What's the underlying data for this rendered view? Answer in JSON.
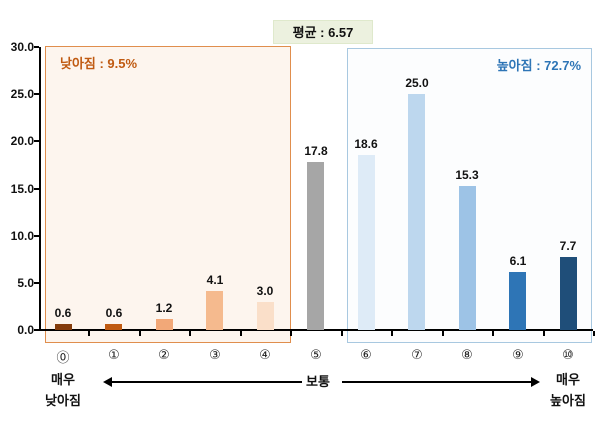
{
  "title": {
    "text": "평균 : 6.57"
  },
  "regions": {
    "low": {
      "label": "낮아짐 : 9.5%",
      "border": "#E08E4D",
      "fill": "#FDF5EE",
      "text_color": "#C05A11"
    },
    "high": {
      "label": "높아짐 : 72.7%",
      "border": "#A8C8E0",
      "fill": "#FCFDFE",
      "text_color": "#2E75B6"
    }
  },
  "chart_data": {
    "type": "bar",
    "title": "평균 : 6.57",
    "categories": [
      "⓪",
      "①",
      "②",
      "③",
      "④",
      "⑤",
      "⑥",
      "⑦",
      "⑧",
      "⑨",
      "⑩"
    ],
    "values": [
      0.6,
      0.6,
      1.2,
      4.1,
      3.0,
      17.8,
      18.6,
      25.0,
      15.3,
      6.1,
      7.7
    ],
    "value_labels": [
      "0.6",
      "0.6",
      "1.2",
      "4.1",
      "3.0",
      "17.8",
      "18.6",
      "25.0",
      "15.3",
      "6.1",
      "7.7"
    ],
    "bar_colors": [
      "#843C0C",
      "#C05A11",
      "#F2A878",
      "#F5BA8E",
      "#FADFC9",
      "#A6A6A6",
      "#DEEBF7",
      "#BDD7EE",
      "#9DC3E6",
      "#2E75B6",
      "#1F4E79"
    ],
    "ylim": [
      0,
      30
    ],
    "ytick_values": [
      0,
      5,
      10,
      15,
      20,
      25,
      30
    ],
    "ytick_labels": [
      "0.0",
      "5.0",
      "10.0",
      "15.0",
      "20.0",
      "25.0",
      "30.0"
    ],
    "grid": false,
    "legend_position": "none",
    "annotations": {
      "mean_badge": "평균 : 6.57",
      "left_region_label": "낮아짐 : 9.5%",
      "right_region_label": "높아짐 : 72.7%",
      "x_left_line1": "매우",
      "x_left_line2": "낮아짐",
      "x_center": "보통",
      "x_right_line1": "매우",
      "x_right_line2": "높아짐"
    },
    "colors": {
      "axis": "#000000",
      "mean_badge_bg": "#ECF1DF"
    }
  }
}
